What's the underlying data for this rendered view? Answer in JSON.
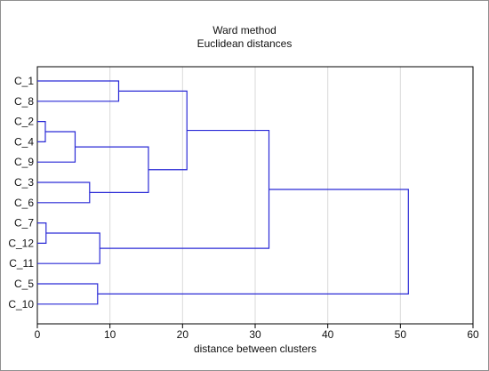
{
  "chart_data": {
    "type": "dendrogram",
    "title": "Ward method",
    "subtitle": "Euclidean distances",
    "xlabel": "distance between clusters",
    "xlim": [
      0,
      60
    ],
    "x_ticks": [
      0,
      10,
      20,
      30,
      40,
      50,
      60
    ],
    "grid": "vertical",
    "leaves": [
      "C_1",
      "C_8",
      "C_2",
      "C_4",
      "C_9",
      "C_3",
      "C_6",
      "C_7",
      "C_12",
      "C_11",
      "C_5",
      "C_10"
    ],
    "merges": [
      {
        "id": "m1",
        "left": "C_1",
        "right": "C_8",
        "distance": 11.2
      },
      {
        "id": "m2",
        "left": "C_2",
        "right": "C_4",
        "distance": 1.1
      },
      {
        "id": "m3",
        "left": "m2",
        "right": "C_9",
        "distance": 5.2
      },
      {
        "id": "m4",
        "left": "C_3",
        "right": "C_6",
        "distance": 7.2
      },
      {
        "id": "m5",
        "left": "m3",
        "right": "m4",
        "distance": 15.3
      },
      {
        "id": "m6",
        "left": "m1",
        "right": "m5",
        "distance": 20.6
      },
      {
        "id": "m7",
        "left": "C_7",
        "right": "C_12",
        "distance": 1.2
      },
      {
        "id": "m8",
        "left": "m7",
        "right": "C_11",
        "distance": 8.6
      },
      {
        "id": "m9",
        "left": "m6",
        "right": "m8",
        "distance": 31.9
      },
      {
        "id": "m10",
        "left": "C_5",
        "right": "C_10",
        "distance": 8.3
      },
      {
        "id": "m11",
        "left": "m9",
        "right": "m10",
        "distance": 51.1
      }
    ],
    "line_color": "#2a2ad6",
    "grid_color": "#d9d9d9"
  }
}
